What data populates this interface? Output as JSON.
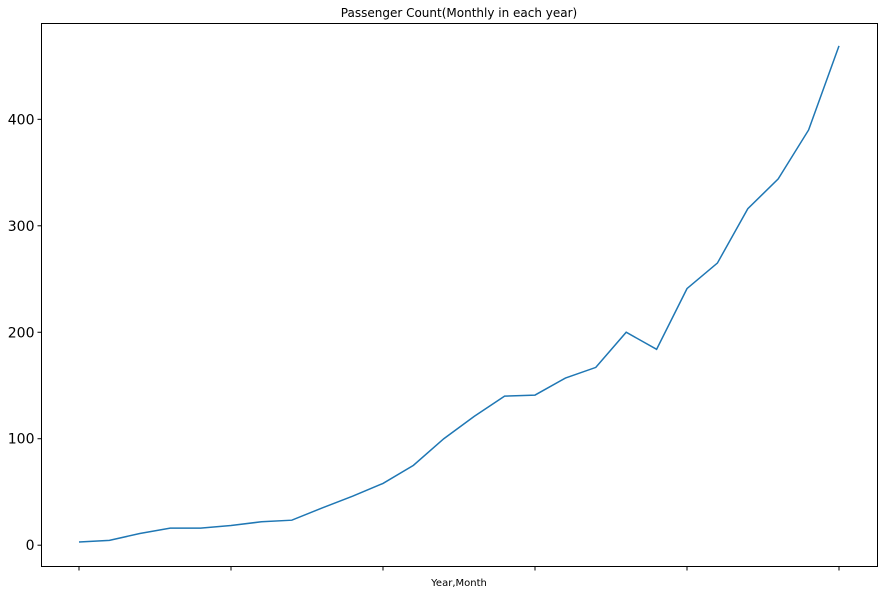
{
  "chart_data": {
    "type": "line",
    "title": "Passenger Count(Monthly in each year)",
    "xlabel": "Year,Month",
    "ylabel": "",
    "ylim": [
      -20,
      490
    ],
    "yticks": [
      0,
      100,
      200,
      300,
      400
    ],
    "x_tick_labels_visible": false,
    "grid": false,
    "legend": "none",
    "line_color": "#1f77b4",
    "series": [
      {
        "values": [
          3,
          4.5,
          11,
          16,
          16,
          18.5,
          22,
          23.5,
          35,
          46,
          58,
          75,
          100,
          121,
          140,
          141,
          157,
          167,
          200,
          184,
          241,
          265,
          316,
          344,
          390,
          469
        ]
      }
    ]
  }
}
